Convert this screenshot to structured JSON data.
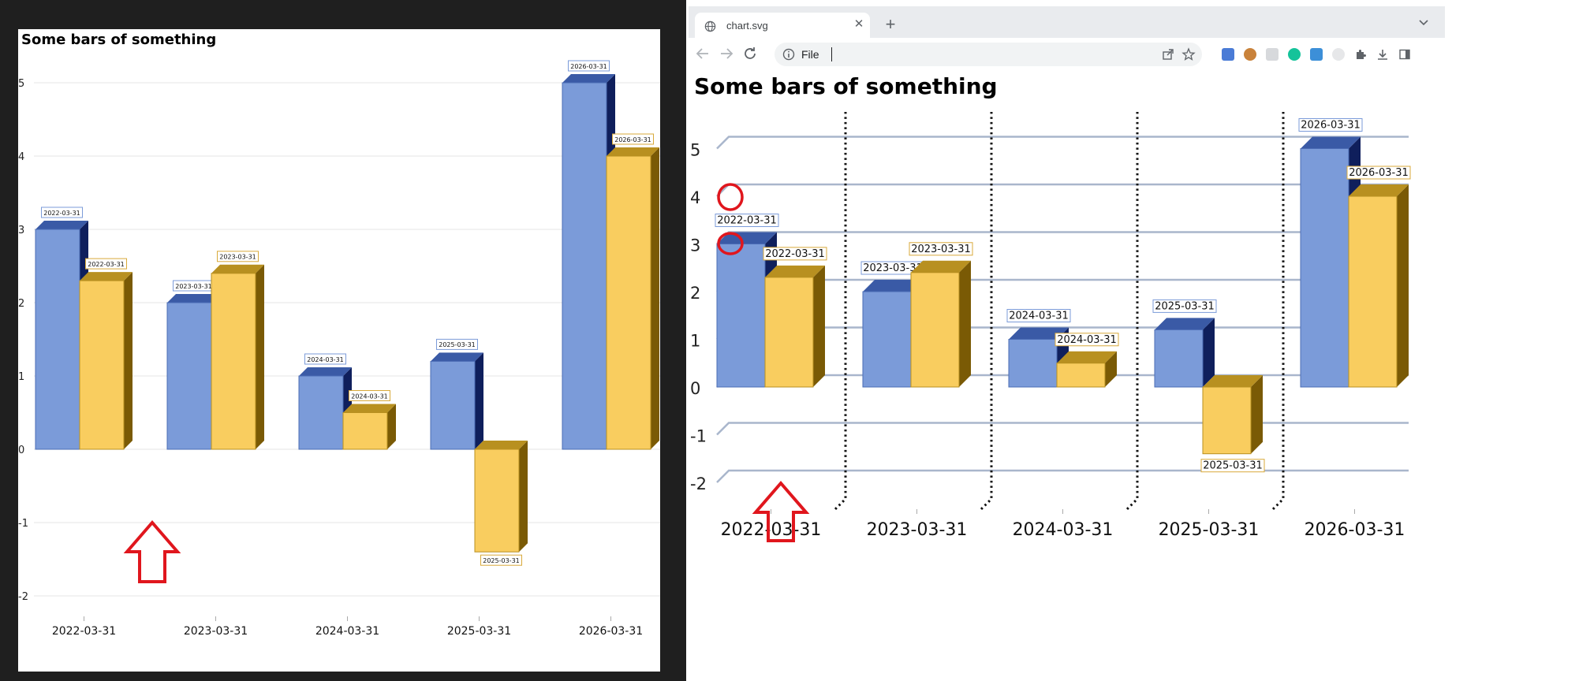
{
  "left_chart": {
    "chart_data": {
      "type": "bar",
      "title": "Some bars of something",
      "categories": [
        "2022-03-31",
        "2023-03-31",
        "2024-03-31",
        "2025-03-31",
        "2026-03-31"
      ],
      "series": [
        {
          "values": [
            3,
            2,
            1,
            1.2,
            5
          ],
          "color": "#7b9bd9"
        },
        {
          "values": [
            2.3,
            2.4,
            0.5,
            -1.4,
            4
          ],
          "color": "#f9cd5f"
        }
      ],
      "ylim": [
        -2,
        5
      ],
      "yticks": [
        5,
        4,
        3,
        2,
        1,
        0,
        -1,
        -2
      ],
      "data_labels": "category on each bar",
      "grid": true,
      "style": "3d"
    }
  },
  "annotations": {
    "arrow_color": "#e0161d",
    "circle_color": "#e0161d"
  },
  "browser": {
    "tab_title": "chart.svg",
    "new_tab_symbol": "+",
    "address_scheme": "File",
    "address_value": ""
  },
  "right_chart": {
    "chart_data": {
      "type": "bar",
      "title": "Some bars of something",
      "categories": [
        "2022-03-31",
        "2023-03-31",
        "2024-03-31",
        "2025-03-31",
        "2026-03-31"
      ],
      "series": [
        {
          "values": [
            3,
            2,
            1,
            1.2,
            5
          ],
          "color": "#7b9bd9"
        },
        {
          "values": [
            2.3,
            2.4,
            0.5,
            -1.4,
            4
          ],
          "color": "#f9cd5f"
        }
      ],
      "ylim": [
        -2,
        5
      ],
      "yticks": [
        5,
        4,
        3,
        2,
        1,
        0,
        -1,
        -2
      ],
      "data_labels": "category on each bar",
      "grid": true,
      "category_separators": "dotted",
      "style": "3d"
    }
  }
}
